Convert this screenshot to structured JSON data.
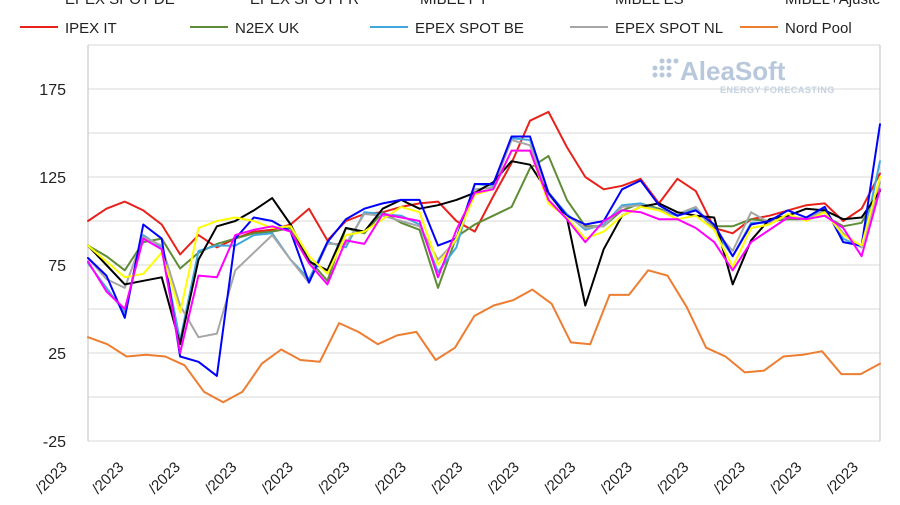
{
  "chart_data": {
    "type": "line",
    "legend_placement": "top",
    "legend_top_row_clipped": [
      {
        "label": "EPEX SPOT DE",
        "color": "#000000"
      },
      {
        "label": "EPEX SPOT FR",
        "color": "#0000ff"
      },
      {
        "label": "MIBEL PT",
        "color": "#ffff00"
      },
      {
        "label": "MIBEL ES",
        "color": "#ff00ff"
      },
      {
        "label": "MIBEL+Ajuste",
        "color": "#c00000"
      }
    ],
    "ylim": [
      -25,
      200
    ],
    "yticks": [
      -25,
      25,
      75,
      125,
      175
    ],
    "grid": true,
    "x_tick_labels": [
      "/2023",
      "/2023",
      "/2023",
      "/2023",
      "/2023",
      "/2023",
      "/2023",
      "/2023",
      "/2023",
      "/2023",
      "/2023",
      "/2023",
      "/2023",
      "/2023",
      "/2023"
    ],
    "series": [
      {
        "name": "IPEX IT",
        "color": "#e8211b",
        "values": [
          100,
          107,
          111,
          106,
          98,
          81,
          92,
          85,
          90,
          94,
          95,
          98,
          107,
          89,
          100,
          104,
          105,
          108,
          110,
          111,
          100,
          94,
          114,
          133,
          157,
          162,
          142,
          125,
          118,
          120,
          124,
          110,
          124,
          117,
          96,
          93,
          101,
          103,
          106,
          109,
          110,
          100,
          107,
          127
        ]
      },
      {
        "name": "N2EX UK",
        "color": "#5e8c37",
        "values": [
          86,
          80,
          72,
          88,
          90,
          73,
          82,
          87,
          90,
          93,
          94,
          96,
          78,
          66,
          96,
          93,
          105,
          99,
          95,
          62,
          91,
          98,
          103,
          108,
          130,
          137,
          112,
          97,
          97,
          106,
          110,
          107,
          103,
          107,
          97,
          97,
          101,
          100,
          101,
          101,
          103,
          97,
          99,
          118
        ]
      },
      {
        "name": "EPEX SPOT BE",
        "color": "#41a8dd",
        "values": [
          76,
          62,
          48,
          92,
          85,
          32,
          83,
          86,
          86,
          92,
          93,
          78,
          67,
          88,
          85,
          105,
          104,
          103,
          98,
          71,
          85,
          121,
          120,
          147,
          146,
          116,
          104,
          95,
          98,
          109,
          110,
          106,
          103,
          107,
          95,
          80,
          99,
          99,
          103,
          101,
          107,
          90,
          85,
          134
        ]
      },
      {
        "name": "EPEX SPOT NL",
        "color": "#a6a6a6",
        "values": [
          79,
          67,
          62,
          91,
          86,
          52,
          34,
          36,
          72,
          82,
          92,
          78,
          65,
          87,
          87,
          104,
          103,
          100,
          97,
          78,
          89,
          118,
          119,
          146,
          143,
          115,
          103,
          96,
          97,
          108,
          109,
          106,
          104,
          108,
          95,
          83,
          105,
          99,
          103,
          101,
          106,
          93,
          85,
          122
        ]
      },
      {
        "name": "Nord Pool",
        "color": "#ed7d31",
        "values": [
          34,
          30,
          23,
          24,
          23,
          18,
          3,
          -3,
          3,
          19,
          27,
          21,
          20,
          42,
          37,
          30,
          35,
          37,
          21,
          28,
          46,
          52,
          55,
          61,
          53,
          31,
          30,
          58,
          58,
          72,
          69,
          51,
          28,
          23,
          14,
          15,
          23,
          24,
          26,
          13,
          13,
          19
        ]
      },
      {
        "name": "EPEX SPOT DE",
        "color": "#000000",
        "values": [
          86,
          75,
          64,
          66,
          68,
          30,
          78,
          97,
          100,
          106,
          113,
          98,
          77,
          72,
          96,
          94,
          107,
          112,
          107,
          109,
          112,
          116,
          122,
          134,
          132,
          116,
          102,
          52,
          84,
          103,
          108,
          110,
          105,
          103,
          102,
          64,
          89,
          101,
          103,
          107,
          106,
          101,
          102,
          117
        ]
      },
      {
        "name": "EPEX SPOT FR",
        "color": "#0000ff",
        "values": [
          79,
          69,
          45,
          98,
          90,
          23,
          20,
          12,
          90,
          102,
          100,
          94,
          65,
          88,
          101,
          107,
          110,
          112,
          112,
          86,
          90,
          121,
          121,
          148,
          148,
          116,
          103,
          98,
          100,
          118,
          123,
          109,
          103,
          106,
          98,
          80,
          98,
          100,
          106,
          102,
          108,
          88,
          86,
          155
        ]
      },
      {
        "name": "MIBEL PT",
        "color": "#ffff00",
        "values": [
          86,
          77,
          68,
          70,
          82,
          48,
          96,
          100,
          102,
          100,
          96,
          97,
          80,
          70,
          92,
          94,
          101,
          108,
          105,
          75,
          90,
          115,
          118,
          140,
          140,
          110,
          102,
          90,
          94,
          103,
          108,
          106,
          101,
          103,
          95,
          74,
          96,
          98,
          104,
          100,
          105,
          92,
          86,
          125
        ]
      },
      {
        "name": "MIBEL ES",
        "color": "#ff00ff",
        "values": [
          77,
          60,
          50,
          90,
          84,
          25,
          69,
          68,
          92,
          95,
          97,
          94,
          76,
          64,
          89,
          87,
          104,
          102,
          100,
          68,
          95,
          116,
          118,
          140,
          140,
          112,
          101,
          88,
          100,
          106,
          105,
          101,
          101,
          96,
          88,
          72,
          88,
          95,
          102,
          101,
          103,
          96,
          80,
          118
        ]
      }
    ]
  },
  "logo": {
    "name": "AleaSoft",
    "tagline": "ENERGY FORECASTING"
  }
}
